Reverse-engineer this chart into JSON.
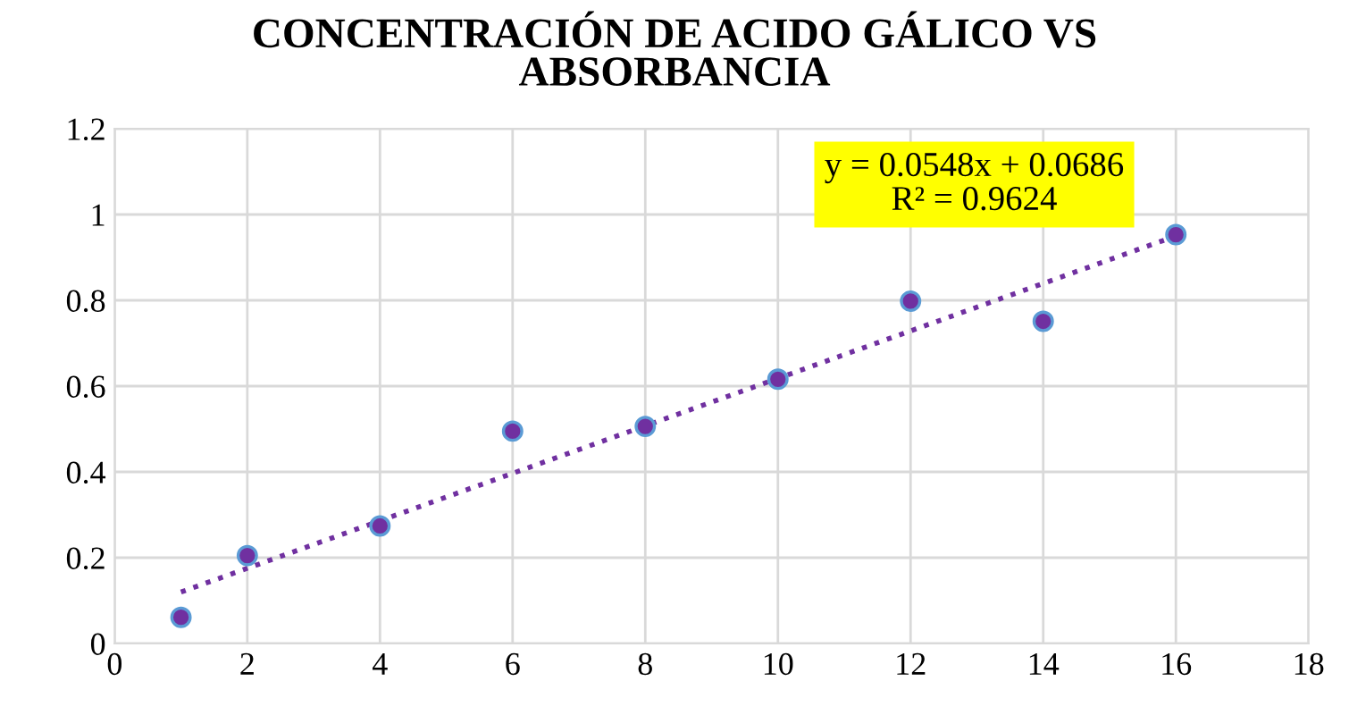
{
  "chart_data": {
    "type": "scatter",
    "title": "CONCENTRACIÓN DE ACIDO GÁLICO VS\nABSORBANCIA",
    "x": [
      1,
      2,
      4,
      6,
      8,
      10,
      12,
      14,
      16
    ],
    "series": [
      {
        "color": "#7030a0",
        "marker": "circle",
        "values": [
          0.061,
          0.205,
          0.274,
          0.495,
          0.506,
          0.616,
          0.798,
          0.751,
          0.953
        ]
      },
      {
        "type": "line",
        "color": "#7030a0",
        "line_style": "dotted",
        "marker": "none",
        "x": [
          1,
          16
        ],
        "values": [
          0.12,
          0.95
        ]
      }
    ],
    "annotations": [
      "y = 0.0548x + 0.0686\nR² = 0.9624"
    ],
    "xlim": [
      0,
      18
    ],
    "xticks": [
      0,
      2,
      4,
      6,
      8,
      10,
      12,
      14,
      16,
      18
    ],
    "ylim": [
      0,
      1.2
    ],
    "yticks": [
      0,
      0.2,
      0.4,
      0.6,
      0.8,
      1,
      1.2
    ],
    "grid": true,
    "legend": false
  }
}
